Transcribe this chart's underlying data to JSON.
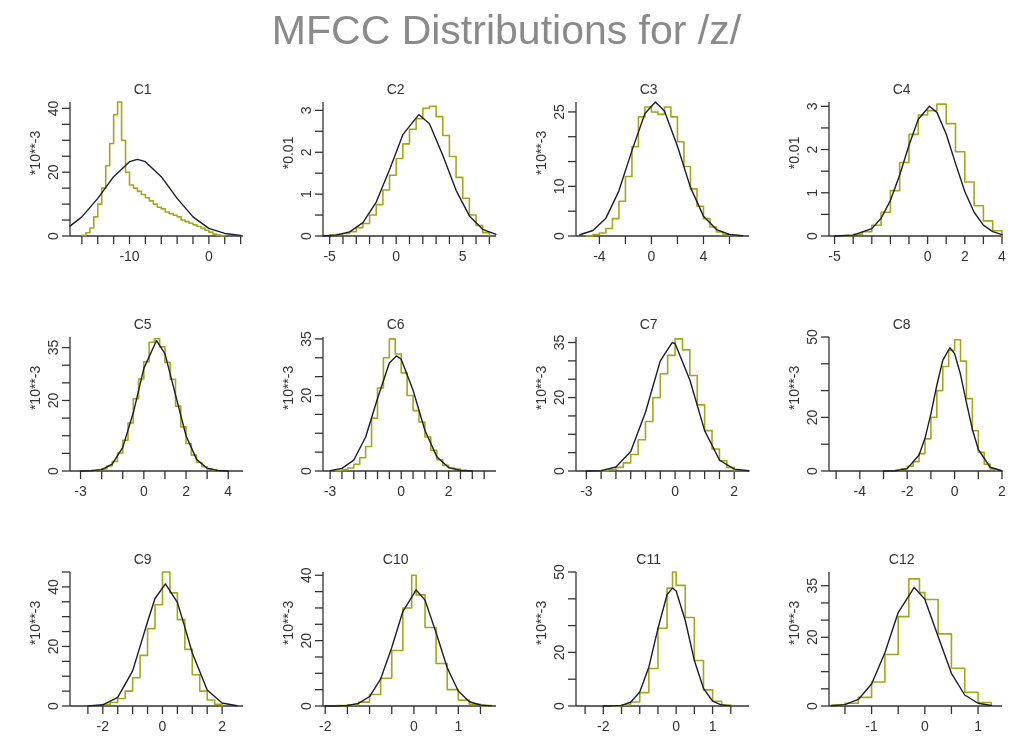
{
  "chart_data": [
    {
      "type": "line",
      "title": "C1",
      "ylabel": "*10**-3",
      "annotations": [
        "MFCC Distributions for /z/"
      ],
      "xlim": [
        -17.5,
        4.3
      ],
      "ylim": [
        0,
        42
      ],
      "xticks": [
        {
          "value": -16,
          "label": null
        },
        {
          "value": -14,
          "label": null
        },
        {
          "value": -12,
          "label": null
        },
        -10,
        {
          "value": -8,
          "label": null
        },
        {
          "value": -6,
          "label": null
        },
        {
          "value": -4,
          "label": null
        },
        {
          "value": -2,
          "label": null
        },
        0,
        {
          "value": 2,
          "label": null
        },
        {
          "value": 4,
          "label": null
        }
      ],
      "yticks": [
        0,
        {
          "value": 5,
          "label": null
        },
        {
          "value": 10,
          "label": null
        },
        {
          "value": 15,
          "label": null
        },
        20,
        {
          "value": 25,
          "label": null
        },
        {
          "value": 30,
          "label": null
        },
        {
          "value": 35,
          "label": null
        },
        40
      ],
      "series": [
        {
          "type": "step",
          "color": "#a3a818",
          "x": [
            -16,
            -15.5,
            -15,
            -14.5,
            -14,
            -13.5,
            -13,
            -12.5,
            -12,
            -11.5,
            -11,
            -10.5,
            -10,
            -9.5,
            -9,
            -8.5,
            -8,
            -7.5,
            -7,
            -6.5,
            -6,
            -5.5,
            -5,
            -4.5,
            -4,
            -3.5,
            -3,
            -2.5,
            -2,
            -1.5,
            -1,
            -0.5,
            0,
            0.5,
            1,
            1.5,
            2
          ],
          "values": [
            0.2,
            1,
            2.5,
            6,
            10,
            15,
            22,
            29,
            38,
            42,
            30,
            20,
            16,
            15,
            14,
            13,
            12,
            11,
            10,
            9,
            8.5,
            7.5,
            7,
            6.5,
            6,
            5,
            4.5,
            4,
            3.5,
            3,
            2.5,
            1.8,
            1.2,
            0.6,
            0.3,
            0.1,
            0
          ]
        },
        {
          "type": "line",
          "color": "#1c1c2c",
          "x": [
            -17.5,
            -16,
            -14,
            -12,
            -10,
            -9,
            -8,
            -6,
            -4,
            -2,
            0,
            2,
            4
          ],
          "values": [
            3.1,
            6,
            11.8,
            18.6,
            23.3,
            24,
            23.3,
            18.6,
            11.8,
            6,
            2.4,
            0.8,
            0.2
          ]
        }
      ]
    },
    {
      "type": "line",
      "title": "C2",
      "ylabel": "*0.01",
      "xlim": [
        -5.5,
        7.5
      ],
      "ylim": [
        0,
        3.2
      ],
      "xticks": [
        -5,
        {
          "value": -4,
          "label": null
        },
        {
          "value": -3,
          "label": null
        },
        {
          "value": -2,
          "label": null
        },
        {
          "value": -1,
          "label": null
        },
        0,
        {
          "value": 1,
          "label": null
        },
        {
          "value": 2,
          "label": null
        },
        {
          "value": 3,
          "label": null
        },
        {
          "value": 4,
          "label": null
        },
        5,
        {
          "value": 6,
          "label": null
        },
        {
          "value": 7,
          "label": null
        }
      ],
      "yticks": [
        0,
        {
          "value": 0.5,
          "label": null
        },
        1,
        {
          "value": 1.5,
          "label": null
        },
        2,
        {
          "value": 2.5,
          "label": null
        },
        3
      ],
      "series": [
        {
          "type": "step",
          "color": "#a3a818",
          "x": [
            -5,
            -4.5,
            -4,
            -3.5,
            -3,
            -2.5,
            -2,
            -1.5,
            -1,
            -0.5,
            0,
            0.5,
            1,
            1.5,
            2,
            2.5,
            3,
            3.5,
            4,
            4.5,
            5,
            5.5,
            6,
            6.5,
            7
          ],
          "values": [
            0.02,
            0.04,
            0.06,
            0.1,
            0.2,
            0.3,
            0.5,
            0.75,
            1.1,
            1.45,
            1.85,
            2.2,
            2.55,
            2.8,
            3.05,
            3.1,
            2.85,
            2.4,
            1.9,
            1.4,
            0.9,
            0.5,
            0.25,
            0.08,
            0
          ]
        },
        {
          "type": "line",
          "color": "#1c1c2c",
          "x": [
            -5.5,
            -4.5,
            -3.5,
            -2.5,
            -1.5,
            -0.5,
            0.5,
            1.7,
            2.5,
            3.5,
            4.5,
            5.5,
            6.5,
            7.5
          ],
          "values": [
            0,
            0.02,
            0.1,
            0.32,
            0.81,
            1.58,
            2.42,
            2.9,
            2.68,
            1.93,
            1.09,
            0.48,
            0.16,
            0.04
          ]
        }
      ]
    },
    {
      "type": "line",
      "title": "C3",
      "ylabel": "*10**-3",
      "xlim": [
        -5.8,
        7.5
      ],
      "ylim": [
        0,
        27
      ],
      "xticks": [
        -4,
        {
          "value": -2,
          "label": null
        },
        0,
        {
          "value": 2,
          "label": null
        },
        4,
        {
          "value": 6,
          "label": null
        }
      ],
      "yticks": [
        0,
        {
          "value": 5,
          "label": null
        },
        10,
        {
          "value": 15,
          "label": null
        },
        {
          "value": 20,
          "label": null
        },
        25
      ],
      "series": [
        {
          "type": "step",
          "color": "#a3a818",
          "x": [
            -5,
            -4.5,
            -4,
            -3.5,
            -3,
            -2.5,
            -2,
            -1.5,
            -1,
            -0.5,
            0,
            0.5,
            1,
            1.5,
            2,
            2.5,
            3,
            3.5,
            4,
            4.5,
            5,
            5.5,
            6,
            6.5
          ],
          "values": [
            0,
            0.3,
            0.6,
            1.5,
            3.5,
            7,
            12,
            18,
            24,
            26,
            25,
            24.5,
            26,
            24,
            19,
            14,
            9.5,
            6,
            3.5,
            1.8,
            0.8,
            0.3,
            0.1,
            0
          ]
        },
        {
          "type": "line",
          "color": "#1c1c2c",
          "x": [
            -5.5,
            -4.5,
            -3.5,
            -2.5,
            -1.5,
            -0.5,
            0.3,
            1,
            2,
            3,
            4,
            5,
            6,
            7
          ],
          "values": [
            0.26,
            1.1,
            3.6,
            9.1,
            17.2,
            24.7,
            27,
            25.2,
            18.1,
            9.8,
            4,
            1.3,
            0.3,
            0.05
          ]
        }
      ]
    },
    {
      "type": "line",
      "title": "C4",
      "ylabel": "*0.01",
      "xlim": [
        -5.3,
        4
      ],
      "ylim": [
        0,
        3.1
      ],
      "xticks": [
        -5,
        {
          "value": -4,
          "label": null
        },
        {
          "value": -3,
          "label": null
        },
        {
          "value": -2,
          "label": null
        },
        {
          "value": -1,
          "label": null
        },
        0,
        {
          "value": 1,
          "label": null
        },
        2,
        {
          "value": 3,
          "label": null
        },
        4
      ],
      "yticks": [
        0,
        {
          "value": 0.5,
          "label": null
        },
        1,
        {
          "value": 1.5,
          "label": null
        },
        2,
        {
          "value": 2.5,
          "label": null
        },
        3
      ],
      "series": [
        {
          "type": "step",
          "color": "#a3a818",
          "x": [
            -4.5,
            -4,
            -3.5,
            -3,
            -2.5,
            -2,
            -1.5,
            -1,
            -0.5,
            0,
            0.5,
            1,
            1.5,
            2,
            2.5,
            3,
            3.5,
            4
          ],
          "values": [
            0.01,
            0.04,
            0.1,
            0.25,
            0.55,
            1.05,
            1.7,
            2.35,
            2.8,
            2.9,
            3.05,
            2.6,
            1.95,
            1.25,
            0.7,
            0.35,
            0.12,
            0
          ]
        },
        {
          "type": "line",
          "color": "#1c1c2c",
          "x": [
            -5,
            -4,
            -3,
            -2.5,
            -2,
            -1.5,
            -1,
            -0.5,
            0.1,
            0.5,
            1,
            1.5,
            2,
            2.5,
            3,
            3.5,
            4
          ],
          "values": [
            0,
            0.02,
            0.17,
            0.41,
            0.82,
            1.41,
            2.1,
            2.7,
            3,
            2.86,
            2.36,
            1.68,
            1.03,
            0.55,
            0.25,
            0.1,
            0.03
          ]
        }
      ]
    },
    {
      "type": "line",
      "title": "C5",
      "ylabel": "*10**-3",
      "xlim": [
        -3.5,
        4.7
      ],
      "ylim": [
        0,
        38
      ],
      "xticks": [
        -3,
        {
          "value": -2,
          "label": null
        },
        {
          "value": -1,
          "label": null
        },
        0,
        {
          "value": 1,
          "label": null
        },
        2,
        {
          "value": 3,
          "label": null
        },
        4
      ],
      "yticks": [
        0,
        {
          "value": 5,
          "label": null
        },
        {
          "value": 10,
          "label": null
        },
        {
          "value": 15,
          "label": null
        },
        20,
        {
          "value": 25,
          "label": null
        },
        {
          "value": 30,
          "label": null
        },
        35
      ],
      "series": [
        {
          "type": "step",
          "color": "#a3a818",
          "x": [
            -2.5,
            -2.25,
            -2,
            -1.75,
            -1.5,
            -1.25,
            -1,
            -0.75,
            -0.5,
            -0.25,
            0,
            0.25,
            0.5,
            0.75,
            1,
            1.25,
            1.5,
            1.75,
            2,
            2.25,
            2.5,
            2.75,
            3,
            3.25,
            3.5
          ],
          "values": [
            0.1,
            0.26,
            0.6,
            1.4,
            2.7,
            5.1,
            8.7,
            13.6,
            20.5,
            26.1,
            31,
            36.5,
            37.5,
            35.2,
            30.8,
            26,
            18.4,
            12.5,
            7.8,
            4.5,
            2.4,
            1.2,
            0.5,
            0.2,
            0
          ]
        },
        {
          "type": "line",
          "color": "#1c1c2c",
          "x": [
            -3,
            -2.5,
            -2,
            -1.5,
            -1,
            -0.5,
            0,
            0.6,
            1,
            1.5,
            2,
            2.5,
            3,
            3.5,
            4
          ],
          "values": [
            0,
            0.06,
            0.4,
            1.96,
            6.7,
            16.5,
            29.1,
            37,
            33.3,
            21.6,
            10,
            3.3,
            0.8,
            0.14,
            0
          ]
        }
      ]
    },
    {
      "type": "line",
      "title": "C6",
      "ylabel": "*10**-3",
      "xlim": [
        -3.3,
        4
      ],
      "ylim": [
        0,
        35.5
      ],
      "xticks": [
        -3,
        {
          "value": -2.5,
          "label": null
        },
        {
          "value": -2,
          "label": null
        },
        {
          "value": -1.5,
          "label": null
        },
        {
          "value": -1,
          "label": null
        },
        {
          "value": -0.5,
          "label": null
        },
        0,
        {
          "value": 0.5,
          "label": null
        },
        {
          "value": 1,
          "label": null
        },
        {
          "value": 1.5,
          "label": null
        },
        2,
        {
          "value": 2.5,
          "label": null
        },
        {
          "value": 3,
          "label": null
        },
        {
          "value": 3.5,
          "label": null
        }
      ],
      "yticks": [
        0,
        {
          "value": 5,
          "label": null
        },
        {
          "value": 10,
          "label": null
        },
        {
          "value": 15,
          "label": null
        },
        20,
        {
          "value": 25,
          "label": null
        },
        {
          "value": 30,
          "label": null
        },
        35
      ],
      "series": [
        {
          "type": "step",
          "color": "#a3a818",
          "x": [
            -2.75,
            -2.5,
            -2.25,
            -2,
            -1.75,
            -1.5,
            -1.25,
            -1,
            -0.75,
            -0.5,
            -0.25,
            0,
            0.25,
            0.5,
            0.75,
            1,
            1.25,
            1.5,
            1.75,
            2,
            2.25,
            2.5,
            2.75
          ],
          "values": [
            0.1,
            0.3,
            0.8,
            1.8,
            3.5,
            6.5,
            14,
            22,
            30,
            35,
            31,
            26,
            20,
            16,
            13,
            9,
            5.5,
            3,
            1.5,
            0.8,
            0.5,
            0.2,
            0
          ]
        },
        {
          "type": "line",
          "color": "#1c1c2c",
          "x": [
            -3,
            -2.5,
            -2,
            -1.5,
            -1,
            -0.5,
            -0.2,
            0,
            0.5,
            1,
            1.5,
            2,
            2.5,
            3
          ],
          "values": [
            0.1,
            0.7,
            2.9,
            9,
            19.2,
            28.6,
            30.5,
            29.6,
            21.4,
            10.8,
            3.8,
            0.9,
            0.15,
            0
          ]
        }
      ]
    },
    {
      "type": "line",
      "title": "C7",
      "ylabel": "*10**-3",
      "xlim": [
        -3.35,
        2.5
      ],
      "ylim": [
        0,
        36.5
      ],
      "xticks": [
        -3,
        {
          "value": -2.5,
          "label": null
        },
        {
          "value": -2,
          "label": null
        },
        {
          "value": -1.5,
          "label": null
        },
        {
          "value": -1,
          "label": null
        },
        {
          "value": -0.5,
          "label": null
        },
        0,
        {
          "value": 0.5,
          "label": null
        },
        {
          "value": 1,
          "label": null
        },
        {
          "value": 1.5,
          "label": null
        },
        2
      ],
      "yticks": [
        0,
        {
          "value": 5,
          "label": null
        },
        {
          "value": 10,
          "label": null
        },
        {
          "value": 15,
          "label": null
        },
        20,
        {
          "value": 25,
          "label": null
        },
        {
          "value": 30,
          "label": null
        },
        35
      ],
      "series": [
        {
          "type": "step",
          "color": "#a3a818",
          "x": [
            -2.5,
            -2.25,
            -2,
            -1.75,
            -1.5,
            -1.25,
            -1,
            -0.75,
            -0.5,
            -0.25,
            0,
            0.25,
            0.5,
            0.75,
            1,
            1.25,
            1.5,
            1.75,
            2
          ],
          "values": [
            0.1,
            0.4,
            1,
            2.2,
            4.5,
            8.5,
            13.5,
            20,
            26.5,
            31.5,
            36,
            33,
            26,
            18,
            11,
            6,
            2.8,
            1,
            0
          ]
        },
        {
          "type": "line",
          "color": "#1c1c2c",
          "x": [
            -3,
            -2.5,
            -2,
            -1.5,
            -1,
            -0.5,
            -0.1,
            0,
            0.5,
            1,
            1.5,
            2,
            2.5
          ],
          "values": [
            0,
            0.1,
            1.1,
            5.3,
            16,
            30,
            35,
            34.7,
            24.8,
            11,
            3,
            0.5,
            0.05
          ]
        }
      ]
    },
    {
      "type": "line",
      "title": "C8",
      "ylabel": "*10**-3",
      "xlim": [
        -5.3,
        2
      ],
      "ylim": [
        0,
        50
      ],
      "xticks": [
        {
          "value": -5,
          "label": null
        },
        -4,
        {
          "value": -3,
          "label": null
        },
        -2,
        {
          "value": -1,
          "label": null
        },
        0,
        {
          "value": 1,
          "label": null
        },
        2
      ],
      "yticks": [
        0,
        {
          "value": 10,
          "label": null
        },
        20,
        {
          "value": 30,
          "label": null
        },
        {
          "value": 40,
          "label": null
        },
        50
      ],
      "series": [
        {
          "type": "step",
          "color": "#a3a818",
          "x": [
            -2.5,
            -2.25,
            -2,
            -1.75,
            -1.5,
            -1.25,
            -1,
            -0.75,
            -0.5,
            -0.25,
            0,
            0.25,
            0.5,
            0.75,
            1,
            1.25,
            1.5,
            1.75
          ],
          "values": [
            0.3,
            0.8,
            1.8,
            3.5,
            6.5,
            12,
            20,
            30,
            39,
            45,
            49,
            41,
            27,
            15,
            7,
            2.5,
            0.8,
            0
          ]
        },
        {
          "type": "line",
          "color": "#1c1c2c",
          "x": [
            -3,
            -2.5,
            -2,
            -1.5,
            -1.25,
            -1,
            -0.75,
            -0.5,
            -0.2,
            0,
            0.25,
            0.5,
            0.75,
            1,
            1.5,
            2
          ],
          "values": [
            0,
            0.08,
            0.9,
            6,
            12.2,
            21.3,
            32,
            41.3,
            46,
            43.8,
            36,
            25.5,
            15.5,
            8.1,
            1.4,
            0.1
          ]
        }
      ]
    },
    {
      "type": "line",
      "title": "C9",
      "ylabel": "*10**-3",
      "xlim": [
        -3.1,
        2.7
      ],
      "ylim": [
        0,
        45
      ],
      "xticks": [
        {
          "value": -2.5,
          "label": null
        },
        -2,
        {
          "value": -1.5,
          "label": null
        },
        {
          "value": -1,
          "label": null
        },
        {
          "value": -0.5,
          "label": null
        },
        0,
        {
          "value": 0.5,
          "label": null
        },
        {
          "value": 1,
          "label": null
        },
        {
          "value": 1.5,
          "label": null
        },
        2
      ],
      "yticks": [
        0,
        {
          "value": 5,
          "label": null
        },
        {
          "value": 10,
          "label": null
        },
        {
          "value": 15,
          "label": null
        },
        20,
        {
          "value": 25,
          "label": null
        },
        {
          "value": 30,
          "label": null
        },
        {
          "value": 35,
          "label": null
        },
        40,
        {
          "value": 45,
          "label": null
        }
      ],
      "series": [
        {
          "type": "step",
          "color": "#a3a818",
          "x": [
            -2,
            -1.75,
            -1.5,
            -1.25,
            -1,
            -0.75,
            -0.5,
            -0.25,
            0,
            0.25,
            0.5,
            0.75,
            1,
            1.25,
            1.5,
            1.75,
            2
          ],
          "values": [
            0.5,
            1.2,
            2.5,
            5,
            9.5,
            17,
            26,
            34,
            45,
            38,
            29,
            19,
            10.5,
            5,
            2,
            0.6,
            0
          ]
        },
        {
          "type": "line",
          "color": "#1c1c2c",
          "x": [
            -2.5,
            -2,
            -1.5,
            -1,
            -0.5,
            -0.25,
            0.1,
            0.5,
            0.75,
            1,
            1.5,
            2,
            2.5
          ],
          "values": [
            0.04,
            0.4,
            2.9,
            11.8,
            28.3,
            36.1,
            41,
            34.8,
            26.5,
            17.8,
            5.4,
            1,
            0.1
          ]
        }
      ]
    },
    {
      "type": "line",
      "title": "C10",
      "ylabel": "*10**-3",
      "xlim": [
        -2.05,
        1.85
      ],
      "ylim": [
        0,
        41
      ],
      "xticks": [
        -2,
        {
          "value": -1.5,
          "label": null
        },
        {
          "value": -1,
          "label": null
        },
        {
          "value": -0.5,
          "label": null
        },
        0,
        {
          "value": 0.5,
          "label": null
        },
        1,
        {
          "value": 1.5,
          "label": null
        }
      ],
      "yticks": [
        0,
        {
          "value": 5,
          "label": null
        },
        {
          "value": 10,
          "label": null
        },
        {
          "value": 15,
          "label": null
        },
        20,
        {
          "value": 25,
          "label": null
        },
        {
          "value": 30,
          "label": null
        },
        {
          "value": 35,
          "label": null
        },
        40
      ],
      "series": [
        {
          "type": "step",
          "color": "#a3a818",
          "x": [
            -1.75,
            -1.5,
            -1.25,
            -1,
            -0.75,
            -0.5,
            -0.25,
            -0.05,
            0.05,
            0.25,
            0.5,
            0.75,
            1,
            1.25,
            1.5,
            1.75
          ],
          "values": [
            0.1,
            0.4,
            1.2,
            3.5,
            8.5,
            17,
            30,
            40,
            34,
            24,
            13,
            5,
            1.8,
            0.5,
            0.1,
            0
          ]
        },
        {
          "type": "line",
          "color": "#1c1c2c",
          "x": [
            -2,
            -1.75,
            -1.5,
            -1.25,
            -1,
            -0.75,
            -0.5,
            -0.25,
            0.05,
            0.25,
            0.5,
            0.75,
            1,
            1.25,
            1.5,
            1.75
          ],
          "values": [
            0,
            0.02,
            0.15,
            0.8,
            2.9,
            8.3,
            17.9,
            28.9,
            35.5,
            32.4,
            22.4,
            11.7,
            4.6,
            1.3,
            0.3,
            0.05
          ]
        }
      ]
    },
    {
      "type": "line",
      "title": "C11",
      "ylabel": "*10**-3",
      "xlim": [
        -2.75,
        2
      ],
      "ylim": [
        0,
        50
      ],
      "xticks": [
        {
          "value": -2.5,
          "label": null
        },
        -2,
        {
          "value": -1.5,
          "label": null
        },
        {
          "value": -1,
          "label": null
        },
        {
          "value": -0.5,
          "label": null
        },
        0,
        {
          "value": 0.5,
          "label": null
        },
        1,
        {
          "value": 1.5,
          "label": null
        }
      ],
      "yticks": [
        0,
        {
          "value": 10,
          "label": null
        },
        20,
        {
          "value": 30,
          "label": null
        },
        {
          "value": 40,
          "label": null
        },
        50
      ],
      "series": [
        {
          "type": "step",
          "color": "#a3a818",
          "x": [
            -1.75,
            -1.5,
            -1.25,
            -1,
            -0.75,
            -0.5,
            -0.25,
            -0.1,
            0,
            0.25,
            0.5,
            0.75,
            1,
            1.25,
            1.5
          ],
          "values": [
            0.1,
            0.4,
            1.5,
            5,
            14,
            29,
            44,
            50,
            45,
            33,
            17,
            6,
            1.8,
            0.4,
            0
          ]
        },
        {
          "type": "line",
          "color": "#1c1c2c",
          "x": [
            -2,
            -1.75,
            -1.5,
            -1.25,
            -1,
            -0.75,
            -0.5,
            -0.25,
            -0.1,
            0,
            0.25,
            0.5,
            0.75,
            1,
            1.25,
            1.5
          ],
          "values": [
            0,
            0.03,
            0.25,
            1.4,
            5.2,
            14.5,
            28.9,
            41.5,
            44,
            42.9,
            31.9,
            17,
            6.6,
            1.8,
            0.36,
            0.05
          ]
        }
      ]
    },
    {
      "type": "line",
      "title": "C12",
      "ylabel": "*10**-3",
      "xlim": [
        -1.8,
        1.45
      ],
      "ylim": [
        0,
        39
      ],
      "xticks": [
        {
          "value": -1.5,
          "label": null
        },
        -1,
        {
          "value": -0.5,
          "label": null
        },
        0,
        {
          "value": 0.5,
          "label": null
        },
        1
      ],
      "yticks": [
        0,
        {
          "value": 5,
          "label": null
        },
        {
          "value": 10,
          "label": null
        },
        {
          "value": 15,
          "label": null
        },
        20,
        {
          "value": 25,
          "label": null
        },
        {
          "value": 30,
          "label": null
        },
        35
      ],
      "series": [
        {
          "type": "step",
          "color": "#a3a818",
          "x": [
            -1.75,
            -1.5,
            -1.25,
            -1,
            -0.75,
            -0.5,
            -0.3,
            -0.1,
            0,
            0.25,
            0.5,
            0.75,
            1,
            1.25
          ],
          "values": [
            0.3,
            0.8,
            2.5,
            7,
            15,
            26,
            37,
            33,
            31,
            21,
            11,
            4,
            1,
            0
          ]
        },
        {
          "type": "line",
          "color": "#1c1c2c",
          "x": [
            -1.75,
            -1.5,
            -1.25,
            -1,
            -0.75,
            -0.5,
            -0.2,
            0,
            0.25,
            0.5,
            0.75,
            1,
            1.25
          ],
          "values": [
            0.06,
            0.4,
            1.9,
            6.4,
            15.5,
            27.2,
            34.5,
            31.1,
            20.2,
            9.5,
            3.2,
            0.8,
            0.14
          ]
        }
      ]
    }
  ]
}
